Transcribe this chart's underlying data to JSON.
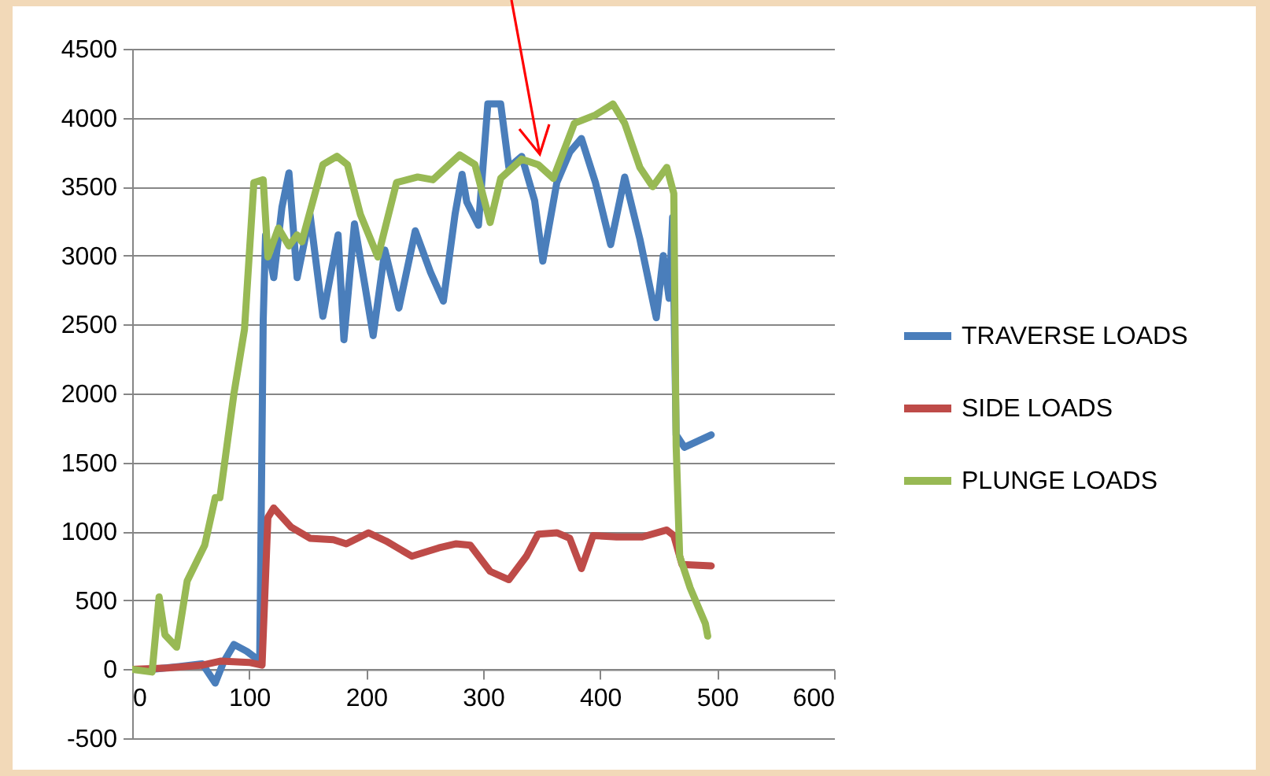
{
  "chart_data": {
    "type": "line",
    "xlim": [
      0,
      600
    ],
    "xticks": [
      0,
      100,
      200,
      300,
      400,
      500,
      600
    ],
    "ylim": [
      -500,
      4500
    ],
    "yticks": [
      -500,
      0,
      500,
      1000,
      1500,
      2000,
      2500,
      3000,
      3500,
      4000,
      4500
    ],
    "grid": "y",
    "legend": "right",
    "marker": "none",
    "line_style": "solid",
    "series": [
      {
        "name": "TRAVERSE LOADS",
        "color": "#4a7ebb",
        "x": [
          0,
          17,
          40,
          60,
          71,
          78,
          87,
          98,
          109,
          112,
          114,
          121,
          128,
          134,
          141,
          152,
          163,
          176,
          181,
          190,
          199,
          206,
          216,
          228,
          242,
          255,
          266,
          276,
          282,
          286,
          296,
          304,
          315,
          322,
          333,
          344,
          351,
          363,
          374,
          384,
          396,
          409,
          421,
          434,
          448,
          454,
          459,
          462,
          465,
          472,
          495
        ],
        "values": [
          0,
          0,
          20,
          40,
          -100,
          50,
          180,
          130,
          60,
          2530,
          3150,
          2840,
          3350,
          3600,
          2840,
          3300,
          2560,
          3150,
          2390,
          3230,
          2780,
          2420,
          3040,
          2620,
          3180,
          2880,
          2670,
          3300,
          3590,
          3390,
          3220,
          4100,
          4100,
          3640,
          3720,
          3400,
          2960,
          3530,
          3750,
          3850,
          3530,
          3080,
          3570,
          3120,
          2550,
          3000,
          2690,
          3280,
          1700,
          1610,
          1700
        ]
      },
      {
        "name": "SIDE LOADS",
        "color": "#be4b48",
        "x": [
          0,
          30,
          60,
          76,
          100,
          111,
          116,
          121,
          136,
          152,
          172,
          183,
          202,
          217,
          239,
          262,
          277,
          289,
          306,
          322,
          337,
          347,
          363,
          374,
          384,
          394,
          414,
          436,
          457,
          463,
          470,
          495
        ],
        "values": [
          0,
          10,
          30,
          60,
          50,
          30,
          1100,
          1170,
          1030,
          950,
          940,
          910,
          990,
          930,
          820,
          880,
          910,
          900,
          710,
          650,
          820,
          980,
          990,
          950,
          730,
          970,
          960,
          960,
          1010,
          970,
          760,
          750
        ]
      },
      {
        "name": "PLUNGE LOADS",
        "color": "#98b954",
        "x": [
          0,
          17,
          23,
          28,
          38,
          47,
          62,
          71,
          75,
          87,
          96,
          104,
          112,
          116,
          125,
          134,
          141,
          145,
          163,
          175,
          184,
          195,
          210,
          226,
          244,
          257,
          271,
          280,
          293,
          306,
          315,
          333,
          347,
          360,
          378,
          396,
          411,
          421,
          434,
          445,
          457,
          463,
          465,
          468,
          477,
          490,
          492
        ],
        "values": [
          0,
          -20,
          525,
          250,
          160,
          640,
          900,
          1245,
          1245,
          2000,
          2465,
          3530,
          3550,
          2990,
          3200,
          3070,
          3150,
          3100,
          3660,
          3720,
          3660,
          3300,
          2990,
          3530,
          3570,
          3550,
          3660,
          3730,
          3660,
          3240,
          3560,
          3700,
          3660,
          3560,
          3960,
          4020,
          4100,
          3960,
          3640,
          3500,
          3640,
          3450,
          1620,
          820,
          590,
          330,
          240
        ]
      }
    ]
  }
}
